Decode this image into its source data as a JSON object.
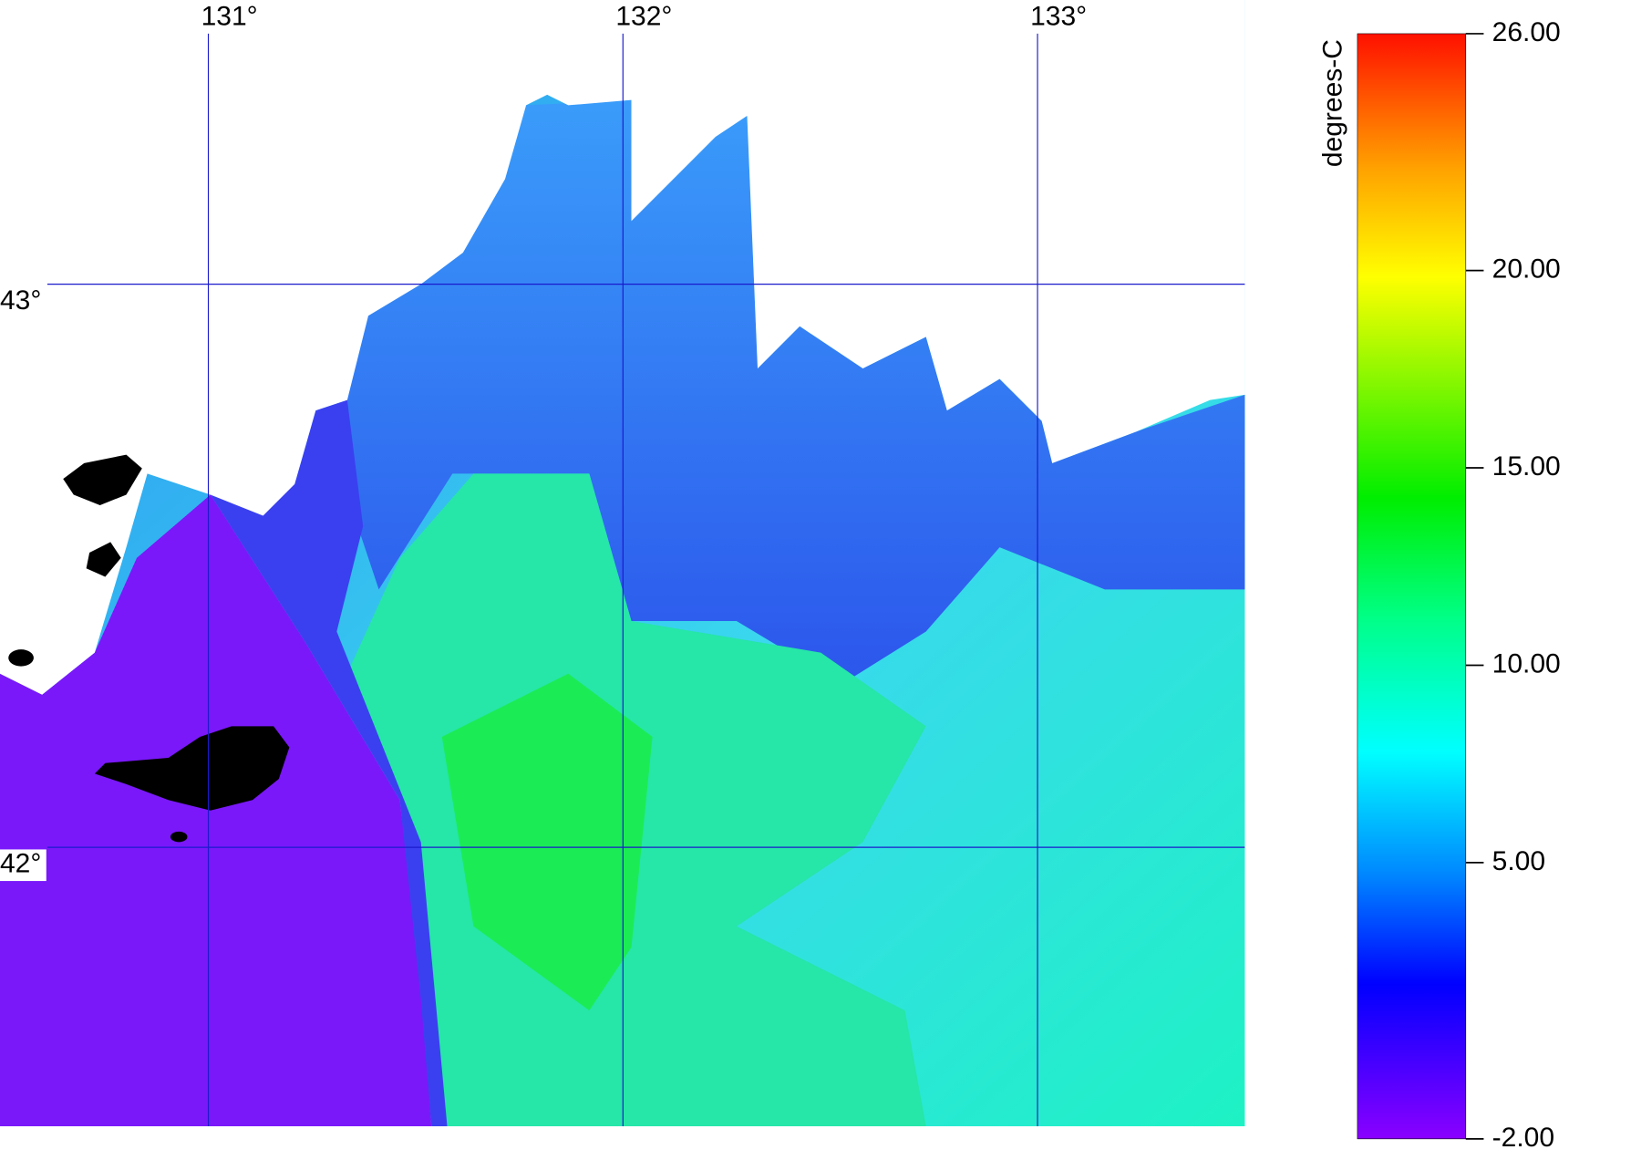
{
  "map": {
    "longitude_labels": [
      {
        "value": 131,
        "label": "131°"
      },
      {
        "value": 132,
        "label": "132°"
      },
      {
        "value": 133,
        "label": "133°"
      }
    ],
    "latitude_labels": [
      {
        "value": 43,
        "label": "43°"
      },
      {
        "value": 42,
        "label": "42°"
      }
    ]
  },
  "colorbar": {
    "title": "degrees-C",
    "ticks": [
      {
        "value": 26,
        "label": "26.00"
      },
      {
        "value": 20,
        "label": "20.00"
      },
      {
        "value": 15,
        "label": "15.00"
      },
      {
        "value": 10,
        "label": "10.00"
      },
      {
        "value": 5,
        "label": "5.00"
      },
      {
        "value": -2,
        "label": "-2.00"
      }
    ]
  }
}
